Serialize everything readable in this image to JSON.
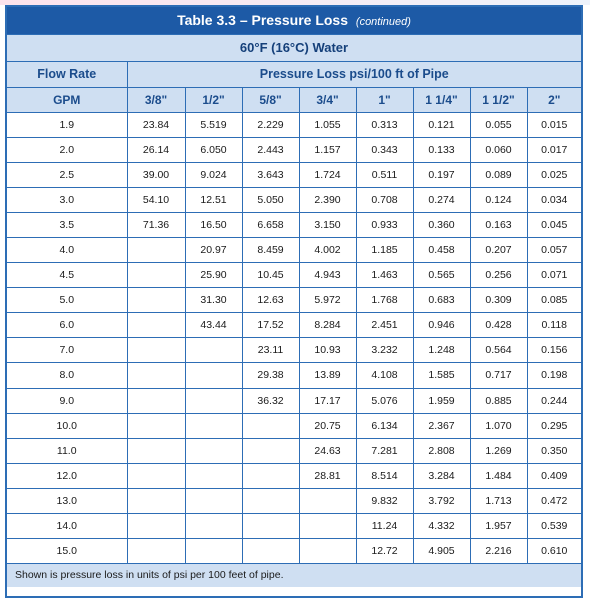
{
  "table": {
    "title": "Table 3.3 – Pressure Loss",
    "title_suffix": "(continued)",
    "subtitle": "60°F (16°C) Water",
    "col_flow_header": "Flow Rate",
    "col_loss_header": "Pressure Loss psi/100 ft of Pipe",
    "gpm_label": "GPM",
    "pipe_sizes": [
      "3/8\"",
      "1/2\"",
      "5/8\"",
      "3/4\"",
      "1\"",
      "1 1/4\"",
      "1 1/2\"",
      "2\""
    ],
    "rows": [
      [
        "1.9",
        "23.84",
        "5.519",
        "2.229",
        "1.055",
        "0.313",
        "0.121",
        "0.055",
        "0.015"
      ],
      [
        "2.0",
        "26.14",
        "6.050",
        "2.443",
        "1.157",
        "0.343",
        "0.133",
        "0.060",
        "0.017"
      ],
      [
        "2.5",
        "39.00",
        "9.024",
        "3.643",
        "1.724",
        "0.511",
        "0.197",
        "0.089",
        "0.025"
      ],
      [
        "3.0",
        "54.10",
        "12.51",
        "5.050",
        "2.390",
        "0.708",
        "0.274",
        "0.124",
        "0.034"
      ],
      [
        "3.5",
        "71.36",
        "16.50",
        "6.658",
        "3.150",
        "0.933",
        "0.360",
        "0.163",
        "0.045"
      ],
      [
        "4.0",
        "",
        "20.97",
        "8.459",
        "4.002",
        "1.185",
        "0.458",
        "0.207",
        "0.057"
      ],
      [
        "4.5",
        "",
        "25.90",
        "10.45",
        "4.943",
        "1.463",
        "0.565",
        "0.256",
        "0.071"
      ],
      [
        "5.0",
        "",
        "31.30",
        "12.63",
        "5.972",
        "1.768",
        "0.683",
        "0.309",
        "0.085"
      ],
      [
        "6.0",
        "",
        "43.44",
        "17.52",
        "8.284",
        "2.451",
        "0.946",
        "0.428",
        "0.118"
      ],
      [
        "7.0",
        "",
        "",
        "23.11",
        "10.93",
        "3.232",
        "1.248",
        "0.564",
        "0.156"
      ],
      [
        "8.0",
        "",
        "",
        "29.38",
        "13.89",
        "4.108",
        "1.585",
        "0.717",
        "0.198"
      ],
      [
        "9.0",
        "",
        "",
        "36.32",
        "17.17",
        "5.076",
        "1.959",
        "0.885",
        "0.244"
      ],
      [
        "10.0",
        "",
        "",
        "",
        "20.75",
        "6.134",
        "2.367",
        "1.070",
        "0.295"
      ],
      [
        "11.0",
        "",
        "",
        "",
        "24.63",
        "7.281",
        "2.808",
        "1.269",
        "0.350"
      ],
      [
        "12.0",
        "",
        "",
        "",
        "28.81",
        "8.514",
        "3.284",
        "1.484",
        "0.409"
      ],
      [
        "13.0",
        "",
        "",
        "",
        "",
        "9.832",
        "3.792",
        "1.713",
        "0.472"
      ],
      [
        "14.0",
        "",
        "",
        "",
        "",
        "11.24",
        "4.332",
        "1.957",
        "0.539"
      ],
      [
        "15.0",
        "",
        "",
        "",
        "",
        "12.72",
        "4.905",
        "2.216",
        "0.610"
      ]
    ],
    "footnote": "Shown is pressure loss in units of psi per 100 feet of pipe."
  },
  "colors": {
    "title_bg": "#1d5aa6",
    "header_bg": "#cfdff2",
    "border": "#2d6db5"
  }
}
